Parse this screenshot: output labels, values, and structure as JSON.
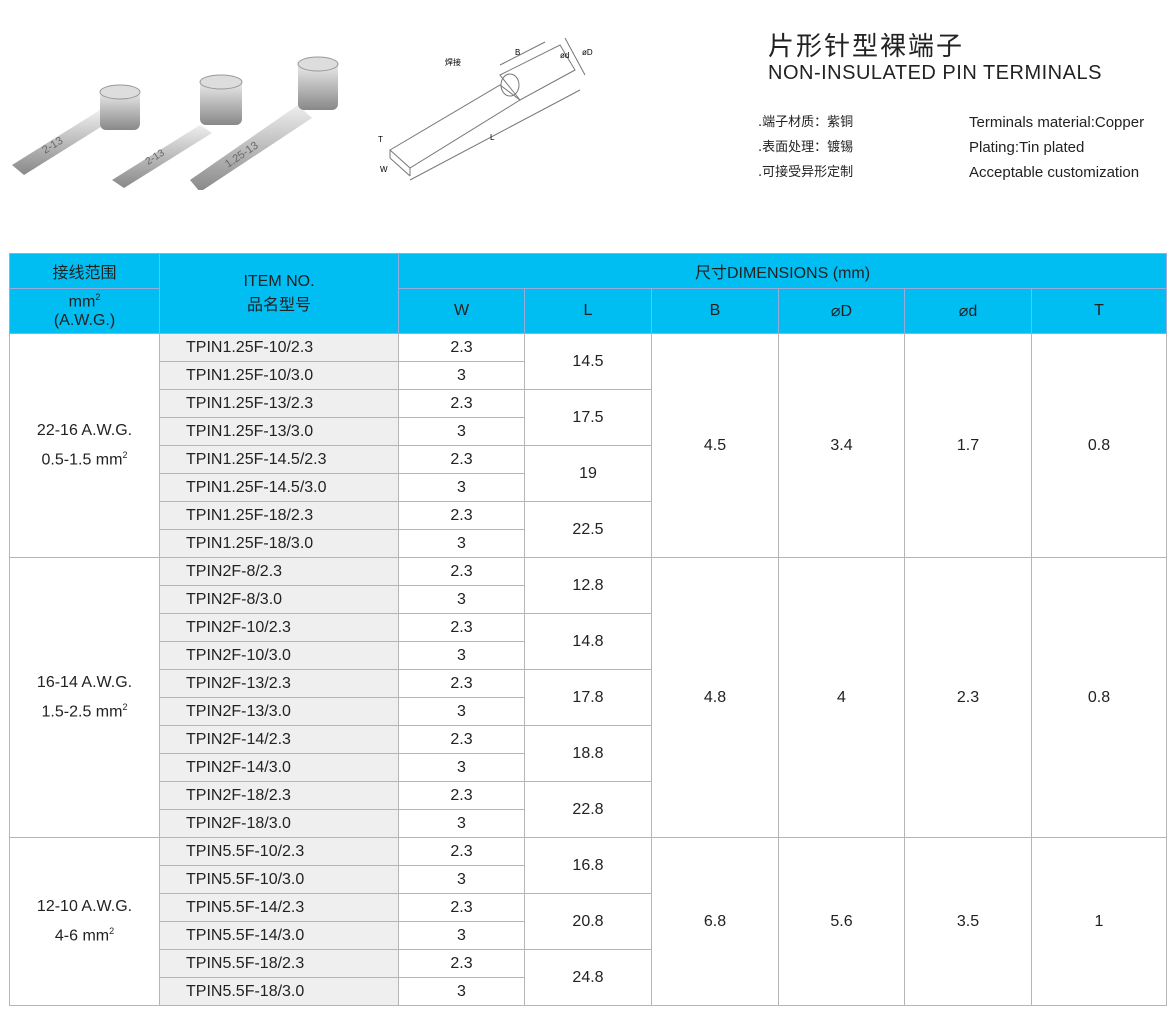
{
  "header": {
    "title_cn": "片形针型裸端子",
    "title_en": "NON-INSULATED PIN TERMINALS",
    "specs": [
      {
        "cn": ".端子材质：紫铜",
        "en": "Terminals material:Copper"
      },
      {
        "cn": ".表面处理：镀锡",
        "en": "Plating:Tin plated"
      },
      {
        "cn": ".可接受异形定制",
        "en": "Acceptable customization"
      }
    ]
  },
  "drawing": {
    "weld_label": "焊接",
    "labels": [
      "B",
      "ød",
      "øD",
      "L",
      "T",
      "W"
    ]
  },
  "photo": {
    "markings": [
      "2-13",
      "2-13",
      "1.25-13"
    ]
  },
  "table": {
    "range_header_cn": "接线范围",
    "range_header_unit": "mm",
    "range_header_awg": "(A.W.G.)",
    "item_header_en": "ITEM NO.",
    "item_header_cn": "品名型号",
    "dimensions_header": "尺寸DIMENSIONS (mm)",
    "columns": [
      "W",
      "L",
      "B",
      "⌀D",
      "⌀d",
      "T"
    ],
    "groups": [
      {
        "awg": "22-16 A.W.G.",
        "mm": "0.5-1.5 mm",
        "B": "4.5",
        "D": "3.4",
        "d": "1.7",
        "T": "0.8",
        "rows": [
          {
            "item": "TPIN1.25F-10/2.3",
            "W": "2.3",
            "L": "14.5"
          },
          {
            "item": "TPIN1.25F-10/3.0",
            "W": "3"
          },
          {
            "item": "TPIN1.25F-13/2.3",
            "W": "2.3",
            "L": "17.5"
          },
          {
            "item": "TPIN1.25F-13/3.0",
            "W": "3"
          },
          {
            "item": "TPIN1.25F-14.5/2.3",
            "W": "2.3",
            "L": "19"
          },
          {
            "item": "TPIN1.25F-14.5/3.0",
            "W": "3"
          },
          {
            "item": "TPIN1.25F-18/2.3",
            "W": "2.3",
            "L": "22.5"
          },
          {
            "item": "TPIN1.25F-18/3.0",
            "W": "3"
          }
        ]
      },
      {
        "awg": "16-14 A.W.G.",
        "mm": "1.5-2.5 mm",
        "B": "4.8",
        "D": "4",
        "d": "2.3",
        "T": "0.8",
        "rows": [
          {
            "item": "TPIN2F-8/2.3",
            "W": "2.3",
            "L": "12.8"
          },
          {
            "item": "TPIN2F-8/3.0",
            "W": "3"
          },
          {
            "item": "TPIN2F-10/2.3",
            "W": "2.3",
            "L": "14.8"
          },
          {
            "item": "TPIN2F-10/3.0",
            "W": "3"
          },
          {
            "item": "TPIN2F-13/2.3",
            "W": "2.3",
            "L": "17.8"
          },
          {
            "item": "TPIN2F-13/3.0",
            "W": "3"
          },
          {
            "item": "TPIN2F-14/2.3",
            "W": "2.3",
            "L": "18.8"
          },
          {
            "item": "TPIN2F-14/3.0",
            "W": "3"
          },
          {
            "item": "TPIN2F-18/2.3",
            "W": "2.3",
            "L": "22.8"
          },
          {
            "item": "TPIN2F-18/3.0",
            "W": "3"
          }
        ]
      },
      {
        "awg": "12-10 A.W.G.",
        "mm": "4-6 mm",
        "B": "6.8",
        "D": "5.6",
        "d": "3.5",
        "T": "1",
        "rows": [
          {
            "item": "TPIN5.5F-10/2.3",
            "W": "2.3",
            "L": "16.8"
          },
          {
            "item": "TPIN5.5F-10/3.0",
            "W": "3"
          },
          {
            "item": "TPIN5.5F-14/2.3",
            "W": "2.3",
            "L": "20.8"
          },
          {
            "item": "TPIN5.5F-14/3.0",
            "W": "3"
          },
          {
            "item": "TPIN5.5F-18/2.3",
            "W": "2.3",
            "L": "24.8"
          },
          {
            "item": "TPIN5.5F-18/3.0",
            "W": "3"
          }
        ]
      }
    ]
  },
  "colors": {
    "header_bg": "#00bdf2",
    "item_bg": "#efefef"
  }
}
